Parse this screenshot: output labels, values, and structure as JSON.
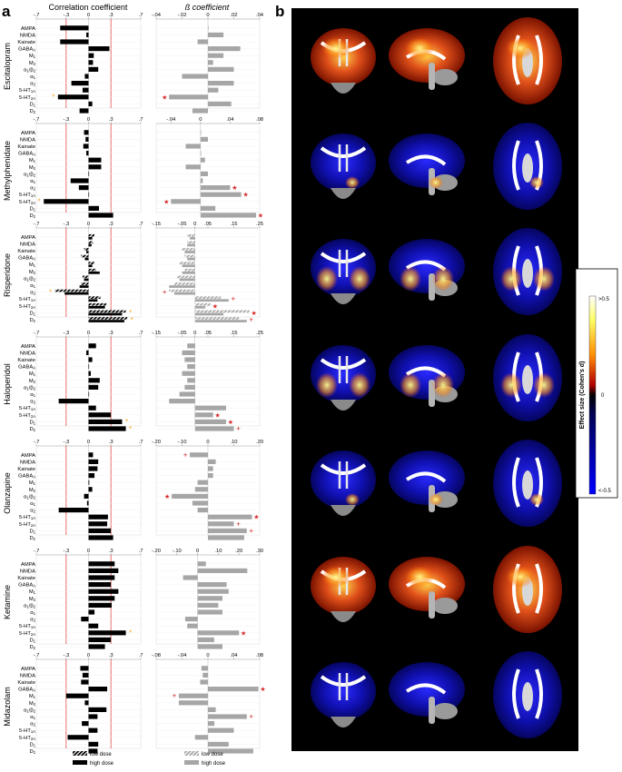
{
  "panel_a": {
    "label": "a",
    "corr_header": "Correlation coefficient",
    "beta_header": "ß coefficient",
    "receptors": [
      "AMPA",
      "NMDA",
      "Kainate",
      "GABA_A",
      "M_1",
      "M_2",
      "α_1/β_2",
      "α_1",
      "α_2",
      "5-HT_1A",
      "5-HT_2A",
      "D_1",
      "D_2"
    ],
    "sig_threshold": 0.3,
    "legend": {
      "low_dose": "low dose",
      "high_dose": "high dose"
    }
  },
  "panel_b": {
    "label": "b",
    "colorbar": {
      "title": "Effect size (Cohen's d)",
      "max_label": ">0.5",
      "mid_label": "0",
      "min_label": "<-0.5"
    }
  },
  "colors": {
    "star": "#d62728",
    "corr_star": "#f5a623",
    "bar_dark": "#000000",
    "bar_grey": "#a6a6a6",
    "threshold_line": "#e03030"
  },
  "chart_data": [
    {
      "type": "bar",
      "drug": "Escitalopram",
      "corr_ticks": [
        "-.7",
        "-.3",
        "0",
        ".3",
        ".7"
      ],
      "corr_lim": [
        -0.7,
        0.7
      ],
      "beta_ticks": [
        "-.04",
        "-.02",
        "0",
        ".02",
        ".04"
      ],
      "beta_lim": [
        -0.04,
        0.04
      ],
      "corr_values": [
        -0.38,
        -0.03,
        -0.38,
        0.28,
        0.07,
        0.06,
        0.13,
        -0.05,
        -0.23,
        -0.08,
        -0.41,
        0.05,
        -0.12
      ],
      "beta_values": [
        0.0,
        0.012,
        -0.008,
        0.025,
        0.012,
        0.004,
        0.02,
        -0.02,
        0.02,
        0.008,
        -0.03,
        0.018,
        -0.012
      ],
      "corr_marks": [
        null,
        null,
        null,
        null,
        null,
        null,
        null,
        null,
        null,
        null,
        "*",
        null,
        null
      ],
      "beta_marks": [
        null,
        null,
        null,
        null,
        null,
        null,
        null,
        null,
        null,
        null,
        "★",
        null,
        null
      ]
    },
    {
      "type": "bar",
      "drug": "Methylphenidate",
      "corr_ticks": [
        "-.7",
        "-.3",
        "0",
        ".3",
        ".7"
      ],
      "corr_lim": [
        -0.7,
        0.7
      ],
      "beta_ticks": [
        "-.04",
        "0",
        ".04",
        ".08"
      ],
      "beta_lim": [
        -0.06,
        0.08
      ],
      "corr_values": [
        -0.06,
        -0.04,
        -0.07,
        -0.03,
        0.17,
        0.17,
        0.0,
        -0.24,
        -0.13,
        0.0,
        -0.6,
        0.14,
        0.33
      ],
      "beta_values": [
        0.0,
        0.01,
        -0.02,
        0.0,
        0.006,
        -0.02,
        0.01,
        0.003,
        0.04,
        0.055,
        -0.04,
        0.02,
        0.075
      ],
      "corr_marks": [
        null,
        null,
        null,
        null,
        null,
        null,
        null,
        null,
        null,
        null,
        "*",
        null,
        null
      ],
      "beta_marks": [
        null,
        null,
        null,
        null,
        null,
        null,
        null,
        null,
        "★",
        "★",
        "★",
        null,
        "★"
      ]
    },
    {
      "type": "bar",
      "drug": "Risperidone",
      "corr_ticks": [
        "-.7",
        "-.3",
        "0",
        ".3",
        ".7"
      ],
      "corr_lim": [
        -0.7,
        0.7
      ],
      "beta_ticks": [
        "-.15",
        "-.05",
        "0",
        ".05",
        ".15",
        ".25"
      ],
      "beta_lim": [
        -0.15,
        0.25
      ],
      "corr_values": [
        [
          0.08,
          0.05
        ],
        [
          0.06,
          0.04
        ],
        [
          -0.06,
          -0.03
        ],
        [
          -0.1,
          -0.05
        ],
        [
          0.08,
          0.05
        ],
        [
          0.1,
          0.15
        ],
        [
          -0.08,
          -0.06
        ],
        [
          -0.1,
          -0.12
        ],
        [
          -0.45,
          -0.32
        ],
        [
          0.16,
          0.12
        ],
        [
          0.24,
          0.22
        ],
        [
          0.5,
          0.45
        ],
        [
          0.52,
          0.48
        ]
      ],
      "beta_values": [
        [
          -0.03,
          -0.02
        ],
        [
          -0.03,
          -0.03
        ],
        [
          -0.05,
          -0.04
        ],
        [
          -0.04,
          -0.03
        ],
        [
          -0.06,
          -0.05
        ],
        [
          -0.04,
          -0.05
        ],
        [
          -0.07,
          -0.06
        ],
        [
          -0.08,
          -0.1
        ],
        [
          -0.1,
          -0.08
        ],
        [
          0.1,
          0.13
        ],
        [
          0.06,
          0.04
        ],
        [
          0.21,
          0.11
        ],
        [
          0.17,
          0.2
        ]
      ],
      "corr_marks": [
        null,
        null,
        null,
        null,
        null,
        null,
        null,
        null,
        "*",
        null,
        null,
        "*",
        "*"
      ],
      "beta_marks": [
        null,
        null,
        null,
        null,
        null,
        null,
        null,
        null,
        "+",
        "+",
        "★",
        "★",
        "+"
      ]
    },
    {
      "type": "bar",
      "drug": "Haloperidol",
      "corr_ticks": [
        "-.7",
        "-.3",
        "0",
        ".3",
        ".7"
      ],
      "corr_lim": [
        -0.7,
        0.7
      ],
      "beta_ticks": [
        "-.15",
        "-.05",
        "0",
        ".05",
        ".15",
        ".25"
      ],
      "beta_lim": [
        -0.15,
        0.25
      ],
      "corr_values": [
        0.1,
        -0.03,
        0.05,
        0.0,
        0.03,
        0.15,
        0.13,
        0.0,
        -0.4,
        0.1,
        0.3,
        0.45,
        0.5
      ],
      "beta_values": [
        -0.03,
        -0.05,
        -0.04,
        -0.03,
        -0.05,
        -0.03,
        -0.04,
        -0.06,
        -0.1,
        0.12,
        0.07,
        0.12,
        0.15
      ],
      "corr_marks": [
        null,
        null,
        null,
        null,
        null,
        null,
        null,
        null,
        null,
        null,
        null,
        "*",
        "*"
      ],
      "beta_marks": [
        null,
        null,
        null,
        null,
        null,
        null,
        null,
        null,
        null,
        null,
        "★",
        "★",
        "+"
      ]
    },
    {
      "type": "bar",
      "drug": "Olanzapine",
      "corr_ticks": [
        "-.7",
        "-.3",
        "0",
        ".3",
        ".7"
      ],
      "corr_lim": [
        -0.7,
        0.7
      ],
      "beta_ticks": [
        "-.20",
        "-.10",
        "0",
        ".10",
        ".20"
      ],
      "beta_lim": [
        -0.2,
        0.2
      ],
      "corr_values": [
        0.06,
        0.13,
        0.12,
        0.08,
        0.01,
        0.05,
        -0.06,
        -0.02,
        -0.4,
        0.26,
        0.25,
        0.3,
        0.33
      ],
      "beta_values": [
        -0.07,
        0.03,
        0.02,
        0.02,
        -0.04,
        -0.05,
        -0.14,
        -0.06,
        -0.04,
        0.17,
        0.1,
        0.15,
        0.14
      ],
      "corr_marks": [
        null,
        null,
        null,
        null,
        null,
        null,
        null,
        null,
        null,
        null,
        null,
        null,
        null
      ],
      "beta_marks": [
        "+",
        null,
        null,
        null,
        null,
        null,
        "★",
        null,
        null,
        "★",
        "+",
        "+",
        null
      ]
    },
    {
      "type": "bar",
      "drug": "Ketamine",
      "corr_ticks": [
        "-.7",
        "-.3",
        "0",
        ".3",
        ".7"
      ],
      "corr_lim": [
        -0.7,
        0.7
      ],
      "beta_ticks": [
        "-.20",
        "-.10",
        "0",
        ".10",
        ".20",
        ".30"
      ],
      "beta_lim": [
        -0.2,
        0.3
      ],
      "corr_values": [
        0.35,
        0.4,
        0.35,
        0.3,
        0.4,
        0.35,
        0.31,
        0.08,
        -0.1,
        0.13,
        0.5,
        0.3,
        0.22
      ],
      "beta_values": [
        0.04,
        0.24,
        -0.07,
        0.14,
        0.15,
        0.12,
        0.1,
        0.12,
        -0.06,
        -0.05,
        0.2,
        0.08,
        0.12
      ],
      "corr_marks": [
        null,
        null,
        null,
        null,
        null,
        null,
        null,
        null,
        null,
        null,
        "*",
        null,
        null
      ],
      "beta_marks": [
        null,
        null,
        null,
        null,
        null,
        null,
        null,
        null,
        null,
        null,
        "★",
        null,
        null
      ]
    },
    {
      "type": "bar",
      "drug": "Midazolam",
      "corr_ticks": [
        "-.7",
        "-.3",
        "0",
        ".3",
        ".7"
      ],
      "corr_lim": [
        -0.7,
        0.7
      ],
      "beta_ticks": [
        "-.08",
        "-.04",
        "0",
        ".04",
        ".08"
      ],
      "beta_lim": [
        -0.08,
        0.08
      ],
      "corr_values": [
        -0.11,
        -0.08,
        -0.1,
        0.25,
        -0.3,
        -0.05,
        0.24,
        0.12,
        -0.09,
        0.12,
        -0.28,
        0.13,
        0.12
      ],
      "beta_values": [
        -0.01,
        -0.008,
        -0.012,
        0.078,
        -0.045,
        -0.045,
        0.012,
        0.06,
        0.01,
        0.04,
        -0.02,
        0.032,
        0.07
      ],
      "corr_marks": [
        null,
        null,
        null,
        null,
        null,
        null,
        null,
        null,
        null,
        null,
        null,
        null,
        null
      ],
      "beta_marks": [
        null,
        null,
        null,
        "★",
        "+",
        null,
        null,
        "+",
        null,
        null,
        null,
        null,
        null
      ]
    }
  ]
}
